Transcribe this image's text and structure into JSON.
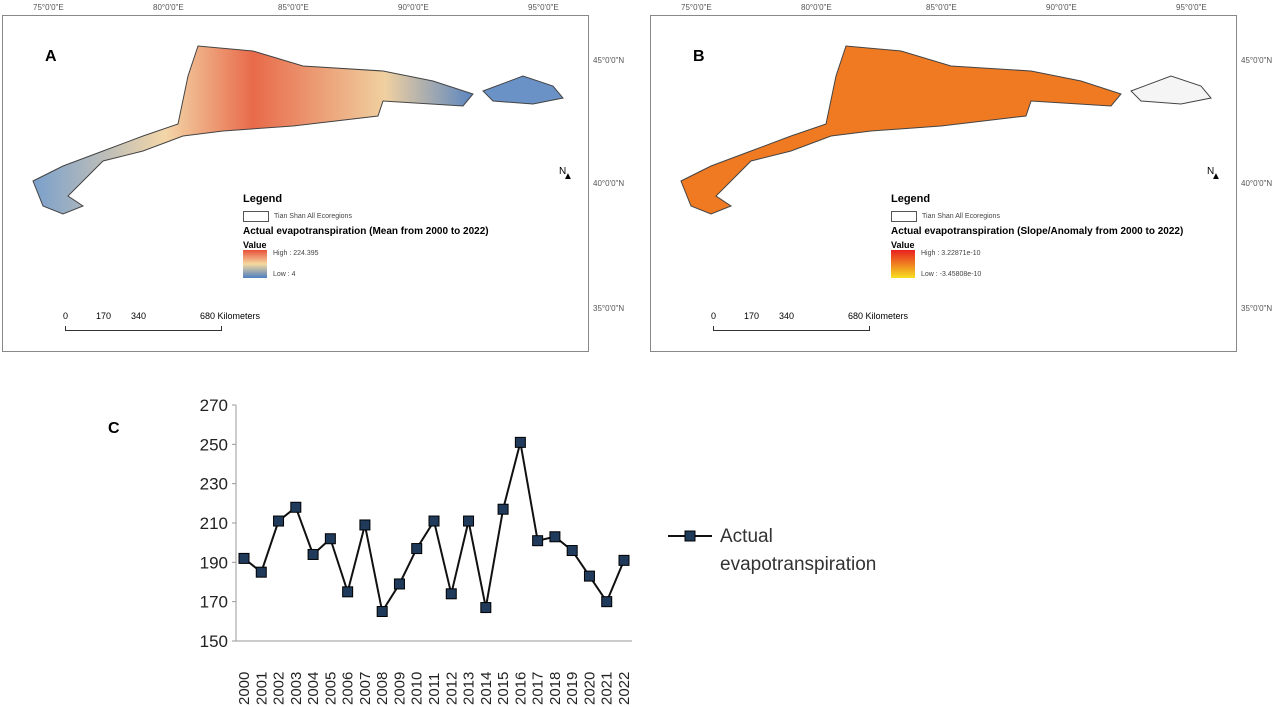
{
  "maps": [
    {
      "letter": "A",
      "lon_ticks": [
        "75°0'0\"E",
        "80°0'0\"E",
        "85°0'0\"E",
        "90°0'0\"E",
        "95°0'0\"E"
      ],
      "lat_ticks": [
        "45°0'0\"N",
        "40°0'0\"N",
        "35°0'0\"N"
      ],
      "legend_title": "Legend",
      "ecoregion_label": "Tian Shan All Ecoregions",
      "layer_title": "Actual evapotranspiration (Mean from 2000 to 2022)",
      "value_label": "Value",
      "high": "High : 224.395",
      "low": "Low : 4",
      "scale_labels": [
        "0",
        "170",
        "340",
        "680 Kilometers"
      ],
      "north": "N",
      "ramp": [
        "#e8503a",
        "#f5d9a0",
        "#4d7fbf"
      ]
    },
    {
      "letter": "B",
      "lon_ticks": [
        "75°0'0\"E",
        "80°0'0\"E",
        "85°0'0\"E",
        "90°0'0\"E",
        "95°0'0\"E"
      ],
      "lat_ticks": [
        "45°0'0\"N",
        "40°0'0\"N",
        "35°0'0\"N"
      ],
      "legend_title": "Legend",
      "ecoregion_label": "Tian Shan All Ecoregions",
      "layer_title": "Actual evapotranspiration (Slope/Anomaly from 2000 to 2022)",
      "value_label": "Value",
      "high": "High : 3.22871e-10",
      "low": "Low : -3.45808e-10",
      "scale_labels": [
        "0",
        "170",
        "340",
        "680 Kilometers"
      ],
      "north": "N",
      "ramp": [
        "#e82020",
        "#f7e020"
      ]
    }
  ],
  "chart_letter": "C",
  "chart_data": {
    "type": "line",
    "categories": [
      "2000",
      "2001",
      "2002",
      "2003",
      "2004",
      "2005",
      "2006",
      "2007",
      "2008",
      "2009",
      "2010",
      "2011",
      "2012",
      "2013",
      "2014",
      "2015",
      "2016",
      "2017",
      "2018",
      "2019",
      "2020",
      "2021",
      "2022"
    ],
    "series": [
      {
        "name": "Actual evapotranspiration",
        "values": [
          192,
          185,
          211,
          218,
          194,
          202,
          175,
          209,
          165,
          179,
          197,
          211,
          174,
          211,
          167,
          217,
          251,
          201,
          203,
          196,
          183,
          170,
          191
        ]
      }
    ],
    "ylim": [
      150,
      270
    ],
    "yticks": [
      150,
      170,
      190,
      210,
      230,
      250,
      270
    ],
    "legend_position": "right",
    "marker": "square",
    "colors": {
      "line": "#111111",
      "marker": "#1f3a5a"
    }
  }
}
